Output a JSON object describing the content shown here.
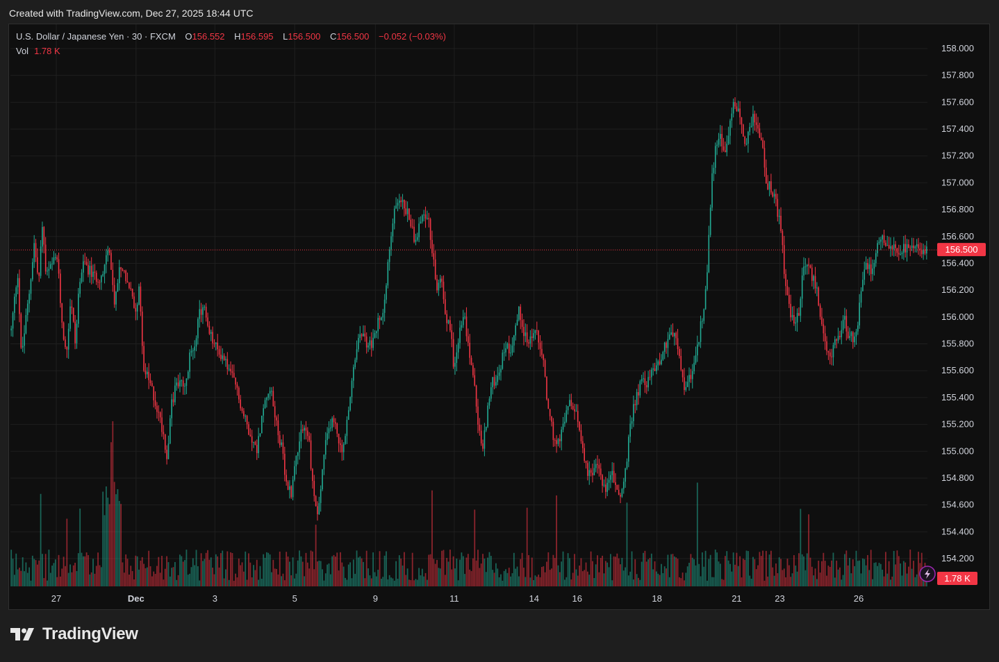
{
  "header": {
    "credit": "Created with TradingView.com, Dec 27, 2025 18:44 UTC"
  },
  "legend": {
    "symbol": "U.S. Dollar / Japanese Yen · 30 · FXCM",
    "open_label": "O",
    "open": "156.552",
    "high_label": "H",
    "high": "156.595",
    "low_label": "L",
    "low": "156.500",
    "close_label": "C",
    "close": "156.500",
    "change": "−0.052 (−0.03%)",
    "vol_label": "Vol",
    "vol": "1.78 K"
  },
  "price_badge": "156.500",
  "vol_badge": "1.78 K",
  "brand": {
    "name": "TradingView",
    "icon": "tradingview-logo-icon"
  },
  "lightning_icon": "lightning-icon",
  "colors": {
    "up": "#22ab94",
    "down": "#f23645",
    "bg": "#0f0f0f",
    "grid": "#1f1f1f"
  },
  "chart_data": {
    "type": "candlestick",
    "title": "U.S. Dollar / Japanese Yen · 30 · FXCM",
    "ylim": [
      154.0,
      158.2
    ],
    "y_ticks": [
      "158.000",
      "157.800",
      "157.600",
      "157.400",
      "157.200",
      "157.000",
      "156.800",
      "156.600",
      "156.400",
      "156.200",
      "156.000",
      "155.800",
      "155.600",
      "155.400",
      "155.200",
      "155.000",
      "154.800",
      "154.600",
      "154.400",
      "154.200"
    ],
    "x_ticks": [
      {
        "label": "27",
        "t": 0.05
      },
      {
        "label": "Dec",
        "t": 0.137,
        "bold": true
      },
      {
        "label": "3",
        "t": 0.223
      },
      {
        "label": "5",
        "t": 0.31
      },
      {
        "label": "9",
        "t": 0.398
      },
      {
        "label": "11",
        "t": 0.484
      },
      {
        "label": "14",
        "t": 0.571
      },
      {
        "label": "16",
        "t": 0.618
      },
      {
        "label": "18",
        "t": 0.705
      },
      {
        "label": "21",
        "t": 0.792
      },
      {
        "label": "23",
        "t": 0.839
      },
      {
        "label": "26",
        "t": 0.925
      }
    ],
    "last_price": 156.5,
    "path": [
      [
        0,
        155.9
      ],
      [
        0.007,
        156.35
      ],
      [
        0.011,
        155.7
      ],
      [
        0.02,
        156.2
      ],
      [
        0.025,
        156.55
      ],
      [
        0.03,
        156.25
      ],
      [
        0.034,
        156.7
      ],
      [
        0.038,
        156.3
      ],
      [
        0.05,
        156.45
      ],
      [
        0.055,
        156.0
      ],
      [
        0.06,
        155.7
      ],
      [
        0.065,
        156.15
      ],
      [
        0.07,
        155.8
      ],
      [
        0.075,
        156.3
      ],
      [
        0.08,
        156.4
      ],
      [
        0.09,
        156.3
      ],
      [
        0.1,
        156.3
      ],
      [
        0.104,
        156.5
      ],
      [
        0.108,
        156.45
      ],
      [
        0.112,
        156.1
      ],
      [
        0.12,
        156.4
      ],
      [
        0.13,
        156.2
      ],
      [
        0.135,
        156.05
      ],
      [
        0.14,
        156.2
      ],
      [
        0.145,
        155.6
      ],
      [
        0.152,
        155.5
      ],
      [
        0.16,
        155.3
      ],
      [
        0.166,
        155.15
      ],
      [
        0.17,
        154.95
      ],
      [
        0.174,
        155.3
      ],
      [
        0.18,
        155.5
      ],
      [
        0.186,
        155.5
      ],
      [
        0.19,
        155.45
      ],
      [
        0.195,
        155.7
      ],
      [
        0.2,
        155.8
      ],
      [
        0.205,
        156.0
      ],
      [
        0.21,
        156.1
      ],
      [
        0.215,
        155.9
      ],
      [
        0.225,
        155.75
      ],
      [
        0.232,
        155.7
      ],
      [
        0.238,
        155.6
      ],
      [
        0.245,
        155.5
      ],
      [
        0.252,
        155.3
      ],
      [
        0.26,
        155.15
      ],
      [
        0.268,
        155.0
      ],
      [
        0.275,
        155.3
      ],
      [
        0.282,
        155.5
      ],
      [
        0.29,
        155.2
      ],
      [
        0.296,
        155.0
      ],
      [
        0.3,
        154.75
      ],
      [
        0.306,
        154.7
      ],
      [
        0.312,
        155.0
      ],
      [
        0.318,
        155.2
      ],
      [
        0.325,
        155.1
      ],
      [
        0.33,
        154.7
      ],
      [
        0.335,
        154.5
      ],
      [
        0.342,
        155.0
      ],
      [
        0.35,
        155.25
      ],
      [
        0.356,
        155.15
      ],
      [
        0.36,
        155.0
      ],
      [
        0.365,
        155.1
      ],
      [
        0.37,
        155.4
      ],
      [
        0.376,
        155.7
      ],
      [
        0.382,
        155.9
      ],
      [
        0.388,
        155.8
      ],
      [
        0.395,
        155.8
      ],
      [
        0.4,
        155.95
      ],
      [
        0.405,
        156.0
      ],
      [
        0.41,
        156.3
      ],
      [
        0.415,
        156.6
      ],
      [
        0.42,
        156.85
      ],
      [
        0.425,
        156.9
      ],
      [
        0.43,
        156.8
      ],
      [
        0.435,
        156.75
      ],
      [
        0.44,
        156.6
      ],
      [
        0.445,
        156.65
      ],
      [
        0.45,
        156.8
      ],
      [
        0.455,
        156.75
      ],
      [
        0.46,
        156.5
      ],
      [
        0.465,
        156.2
      ],
      [
        0.47,
        156.3
      ],
      [
        0.475,
        156.0
      ],
      [
        0.48,
        155.9
      ],
      [
        0.484,
        155.6
      ],
      [
        0.49,
        155.9
      ],
      [
        0.495,
        156.0
      ],
      [
        0.5,
        155.75
      ],
      [
        0.505,
        155.55
      ],
      [
        0.51,
        155.2
      ],
      [
        0.515,
        155.0
      ],
      [
        0.52,
        155.3
      ],
      [
        0.525,
        155.5
      ],
      [
        0.53,
        155.55
      ],
      [
        0.535,
        155.65
      ],
      [
        0.54,
        155.8
      ],
      [
        0.545,
        155.75
      ],
      [
        0.55,
        155.9
      ],
      [
        0.555,
        156.05
      ],
      [
        0.56,
        155.9
      ],
      [
        0.565,
        155.8
      ],
      [
        0.57,
        155.9
      ],
      [
        0.575,
        155.85
      ],
      [
        0.58,
        155.75
      ],
      [
        0.585,
        155.4
      ],
      [
        0.59,
        155.2
      ],
      [
        0.595,
        155.0
      ],
      [
        0.6,
        155.1
      ],
      [
        0.605,
        155.25
      ],
      [
        0.61,
        155.35
      ],
      [
        0.615,
        155.3
      ],
      [
        0.62,
        155.2
      ],
      [
        0.625,
        155.0
      ],
      [
        0.63,
        154.85
      ],
      [
        0.635,
        154.8
      ],
      [
        0.64,
        154.9
      ],
      [
        0.645,
        154.8
      ],
      [
        0.65,
        154.7
      ],
      [
        0.655,
        154.85
      ],
      [
        0.66,
        154.75
      ],
      [
        0.665,
        154.65
      ],
      [
        0.67,
        154.8
      ],
      [
        0.675,
        155.1
      ],
      [
        0.68,
        155.35
      ],
      [
        0.685,
        155.45
      ],
      [
        0.69,
        155.55
      ],
      [
        0.695,
        155.5
      ],
      [
        0.7,
        155.6
      ],
      [
        0.705,
        155.65
      ],
      [
        0.71,
        155.7
      ],
      [
        0.715,
        155.8
      ],
      [
        0.72,
        155.9
      ],
      [
        0.725,
        155.85
      ],
      [
        0.73,
        155.7
      ],
      [
        0.735,
        155.45
      ],
      [
        0.74,
        155.55
      ],
      [
        0.745,
        155.6
      ],
      [
        0.75,
        155.8
      ],
      [
        0.755,
        156.0
      ],
      [
        0.76,
        156.3
      ],
      [
        0.765,
        157.0
      ],
      [
        0.77,
        157.3
      ],
      [
        0.775,
        157.35
      ],
      [
        0.78,
        157.2
      ],
      [
        0.785,
        157.45
      ],
      [
        0.79,
        157.6
      ],
      [
        0.795,
        157.55
      ],
      [
        0.8,
        157.3
      ],
      [
        0.805,
        157.35
      ],
      [
        0.81,
        157.5
      ],
      [
        0.815,
        157.4
      ],
      [
        0.82,
        157.3
      ],
      [
        0.825,
        157.0
      ],
      [
        0.83,
        156.95
      ],
      [
        0.835,
        156.85
      ],
      [
        0.84,
        156.7
      ],
      [
        0.845,
        156.3
      ],
      [
        0.85,
        156.05
      ],
      [
        0.855,
        155.95
      ],
      [
        0.86,
        156.0
      ],
      [
        0.865,
        156.35
      ],
      [
        0.87,
        156.4
      ],
      [
        0.875,
        156.3
      ],
      [
        0.88,
        156.2
      ],
      [
        0.885,
        155.95
      ],
      [
        0.89,
        155.75
      ],
      [
        0.895,
        155.7
      ],
      [
        0.9,
        155.85
      ],
      [
        0.905,
        155.8
      ],
      [
        0.91,
        156.0
      ],
      [
        0.915,
        155.85
      ],
      [
        0.92,
        155.85
      ],
      [
        0.925,
        155.95
      ],
      [
        0.93,
        156.3
      ],
      [
        0.935,
        156.4
      ],
      [
        0.94,
        156.35
      ],
      [
        0.945,
        156.5
      ],
      [
        0.95,
        156.6
      ],
      [
        0.955,
        156.5
      ],
      [
        0.96,
        156.5
      ]
    ]
  }
}
